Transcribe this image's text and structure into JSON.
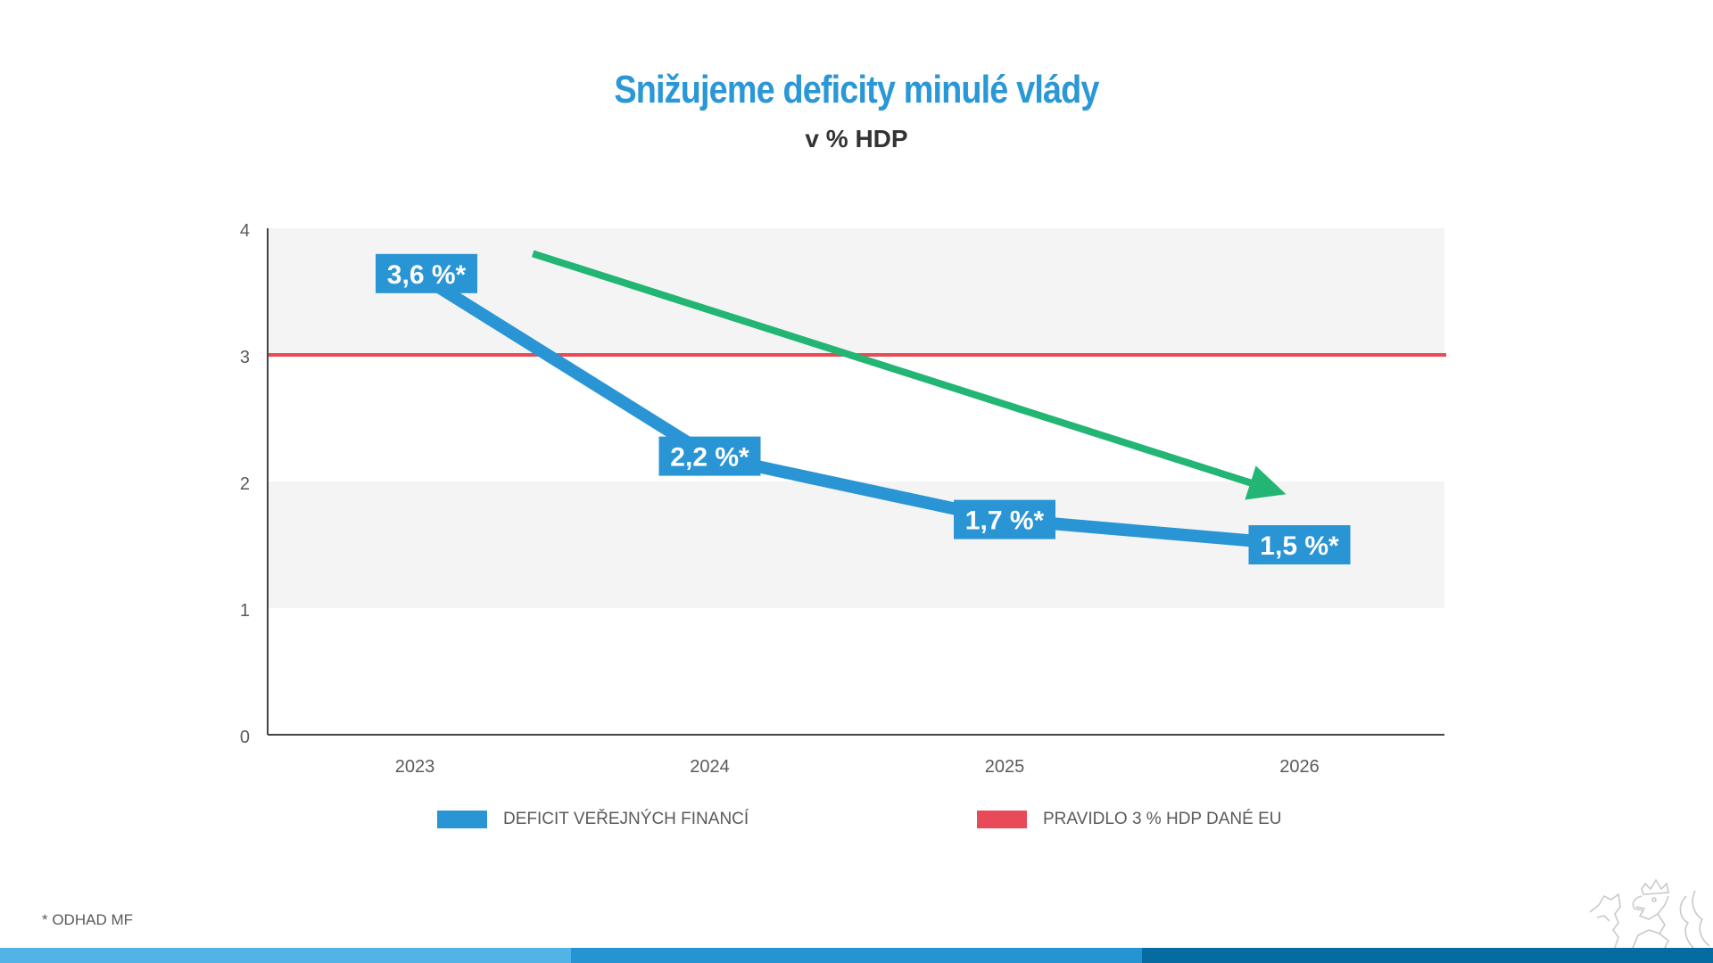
{
  "header": {
    "title": "Snižujeme deficity minulé vlády",
    "subtitle": "v % HDP"
  },
  "chart_data": {
    "type": "line",
    "title": "Snižujeme deficity minulé vlády",
    "subtitle": "v % HDP",
    "xlabel": "",
    "ylabel": "",
    "categories": [
      "2023",
      "2024",
      "2025",
      "2026"
    ],
    "ylim": [
      0,
      4
    ],
    "yticks": [
      "0",
      "1",
      "2",
      "3",
      "4"
    ],
    "alternating_bands": [
      [
        1,
        2
      ],
      [
        3,
        4
      ]
    ],
    "series": [
      {
        "name": "DEFICIT VEŘEJNÝCH FINANCÍ",
        "color": "#2a95d4",
        "values": [
          3.6,
          2.2,
          1.7,
          1.5
        ],
        "data_labels": [
          "3,6 %*",
          "2,2 %*",
          "1,7 %*",
          "1,5 %*"
        ]
      },
      {
        "name": "PRAVIDLO 3 % HDP DANÉ EU",
        "color": "#e84a58",
        "type": "hline",
        "value": 3
      }
    ],
    "annotations": [
      {
        "type": "trend-arrow",
        "color": "#22b573",
        "from": {
          "x": "2023.4",
          "y": 3.8
        },
        "to": {
          "x": "2026",
          "y": 1.9
        },
        "direction": "down"
      }
    ],
    "legend": {
      "position": "bottom",
      "entries": [
        {
          "label": "DEFICIT VEŘEJNÝCH FINANCÍ",
          "color": "#2a95d4"
        },
        {
          "label": "PRAVIDLO 3 % HDP DANÉ EU",
          "color": "#e84a58"
        }
      ]
    },
    "grid": false
  },
  "footnote": "* ODHAD MF",
  "colors": {
    "title": "#2a97d6",
    "band": "#f4f4f4",
    "bar_light": "#52b4e6",
    "bar_mid": "#2494d3",
    "bar_dark": "#066ba0"
  },
  "emblem": "czech-lion-emblem"
}
